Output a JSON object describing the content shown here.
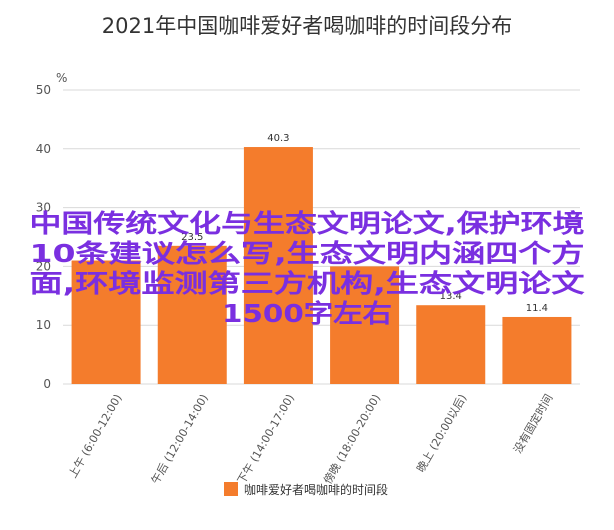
{
  "chart_data": {
    "type": "bar",
    "title": "2021年中国咖啡爱好者喝咖啡的时间段分布",
    "unit": "%",
    "categories": [
      "上午 (6:00-12:00)",
      "午后 (12:00-14:00)",
      "下午 (14:00-17:00)",
      "傍晚 (18:00-20:00)",
      "晚上 (20:00以后)",
      "没有固定时间"
    ],
    "series": [
      {
        "name": "咖啡爱好者喝咖啡的时间段",
        "values": [
          21.0,
          23.5,
          40.3,
          20.0,
          13.4,
          11.4
        ]
      }
    ],
    "data_labels": [
      "",
      "23.5",
      "40.3",
      "",
      "13.4",
      "11.4"
    ],
    "ylim": [
      0,
      50
    ],
    "yticks": [
      0,
      10,
      20,
      30,
      40,
      50
    ],
    "grid": true,
    "legend": "bottom",
    "bar_color": "#f47c2c"
  },
  "overlay": {
    "lines": [
      "中国传统文化与生态文明论文,保护环境",
      "10条建议怎么写,生态文明内涵四个方",
      "面,环境监测第三方机构,生态文明论文",
      "1500字左右"
    ],
    "color": "#7a2fe0"
  }
}
